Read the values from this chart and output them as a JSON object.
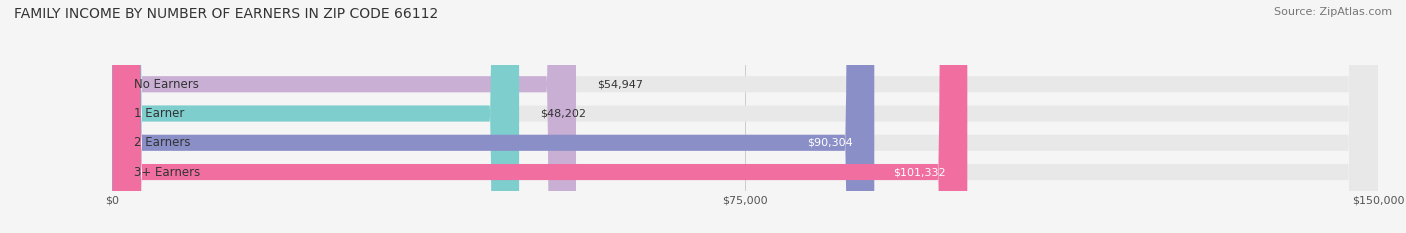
{
  "title": "FAMILY INCOME BY NUMBER OF EARNERS IN ZIP CODE 66112",
  "source": "Source: ZipAtlas.com",
  "categories": [
    "No Earners",
    "1 Earner",
    "2 Earners",
    "3+ Earners"
  ],
  "values": [
    54947,
    48202,
    90304,
    101332
  ],
  "bar_colors": [
    "#c9afd4",
    "#7ecece",
    "#8b8fc8",
    "#f06fa0"
  ],
  "bar_bg_color": "#e8e8e8",
  "label_colors": [
    "#555555",
    "#555555",
    "#ffffff",
    "#ffffff"
  ],
  "xlim": [
    0,
    150000
  ],
  "xticks": [
    0,
    75000,
    150000
  ],
  "xtick_labels": [
    "$0",
    "$75,000",
    "$150,000"
  ],
  "value_labels": [
    "$54,947",
    "$48,202",
    "$90,304",
    "$101,332"
  ],
  "background_color": "#f5f5f5",
  "title_fontsize": 10,
  "source_fontsize": 8,
  "bar_label_fontsize": 8.5,
  "value_label_fontsize": 8,
  "tick_fontsize": 8
}
